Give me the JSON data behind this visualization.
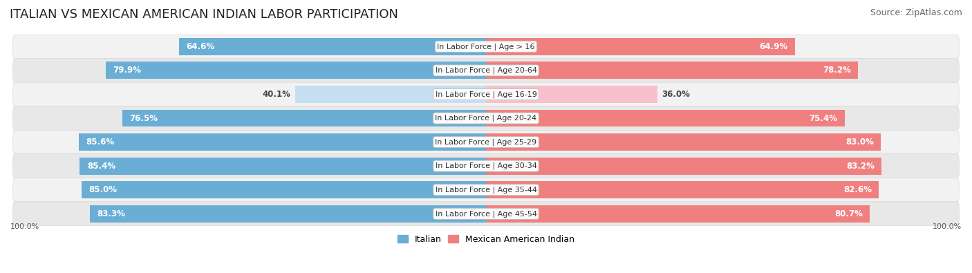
{
  "title": "ITALIAN VS MEXICAN AMERICAN INDIAN LABOR PARTICIPATION",
  "source": "Source: ZipAtlas.com",
  "categories": [
    "In Labor Force | Age > 16",
    "In Labor Force | Age 20-64",
    "In Labor Force | Age 16-19",
    "In Labor Force | Age 20-24",
    "In Labor Force | Age 25-29",
    "In Labor Force | Age 30-34",
    "In Labor Force | Age 35-44",
    "In Labor Force | Age 45-54"
  ],
  "italian_values": [
    64.6,
    79.9,
    40.1,
    76.5,
    85.6,
    85.4,
    85.0,
    83.3
  ],
  "mexican_values": [
    64.9,
    78.2,
    36.0,
    75.4,
    83.0,
    83.2,
    82.6,
    80.7
  ],
  "italian_color": "#6aaed6",
  "italian_color_light": "#c5dff0",
  "mexican_color": "#f08080",
  "mexican_color_light": "#f8c0cc",
  "row_bg_even": "#f2f2f2",
  "row_bg_odd": "#e8e8e8",
  "max_value": 100.0,
  "legend_italian": "Italian",
  "legend_mexican": "Mexican American Indian",
  "title_fontsize": 13,
  "source_fontsize": 9,
  "bar_label_fontsize": 8.5,
  "category_fontsize": 8,
  "axis_label_fontsize": 8,
  "footer_value": "100.0%"
}
